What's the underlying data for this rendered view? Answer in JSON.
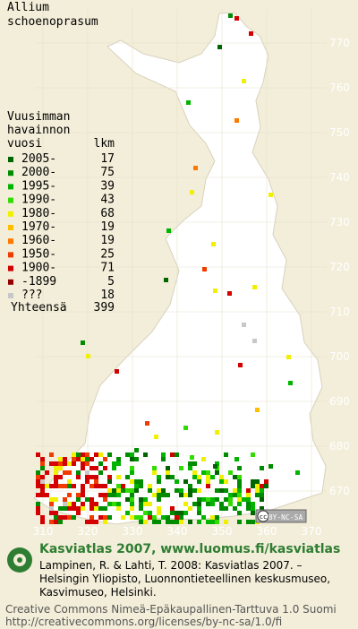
{
  "title": [
    "Allium",
    "schoenoprasum"
  ],
  "legend": {
    "heading": [
      "Vuusimman",
      "havainnon",
      "vuosi"
    ],
    "count_heading": "lkm",
    "rows": [
      {
        "label": "2005-",
        "count": 17,
        "color": "#006400"
      },
      {
        "label": "2000-",
        "count": 75,
        "color": "#008c00"
      },
      {
        "label": "1995-",
        "count": 39,
        "color": "#00b400"
      },
      {
        "label": "1990-",
        "count": 43,
        "color": "#32dc00"
      },
      {
        "label": "1980-",
        "count": 68,
        "color": "#f0f000"
      },
      {
        "label": "1970-",
        "count": 19,
        "color": "#ffbe00"
      },
      {
        "label": "1960-",
        "count": 19,
        "color": "#ff7800"
      },
      {
        "label": "1950-",
        "count": 25,
        "color": "#f03c00"
      },
      {
        "label": "1900-",
        "count": 71,
        "color": "#d20000"
      },
      {
        "label": "-1899",
        "count": 5,
        "color": "#960000"
      },
      {
        "label": "???",
        "count": 18,
        "color": "#c8c8c8"
      }
    ],
    "total": {
      "label": "Yhteensä",
      "count": 399
    }
  },
  "x_ticks": [
    310,
    320,
    330,
    340,
    350,
    360,
    370
  ],
  "y_ticks": [
    670,
    680,
    690,
    700,
    710,
    720,
    730,
    740,
    750,
    760,
    770
  ],
  "badge": [
    "cc",
    "BY-NC-SA"
  ],
  "footer": {
    "site": "Kasviatlas 2007, www.luomus.fi/kasviatlas",
    "citation": [
      "Lampinen, R. & Lahti, T. 2008: Kasviatlas 2007. –",
      "Helsingin Yliopisto, Luonnontieteellinen keskusmuseo,",
      "Kasvimuseo, Helsinki."
    ],
    "license": [
      "Creative Commons Nimeä-Epäkaupallinen-Tarttuva 1.0 Suomi",
      "http://creativecommons.org/licenses/by-nc-sa/1.0/fi"
    ]
  }
}
